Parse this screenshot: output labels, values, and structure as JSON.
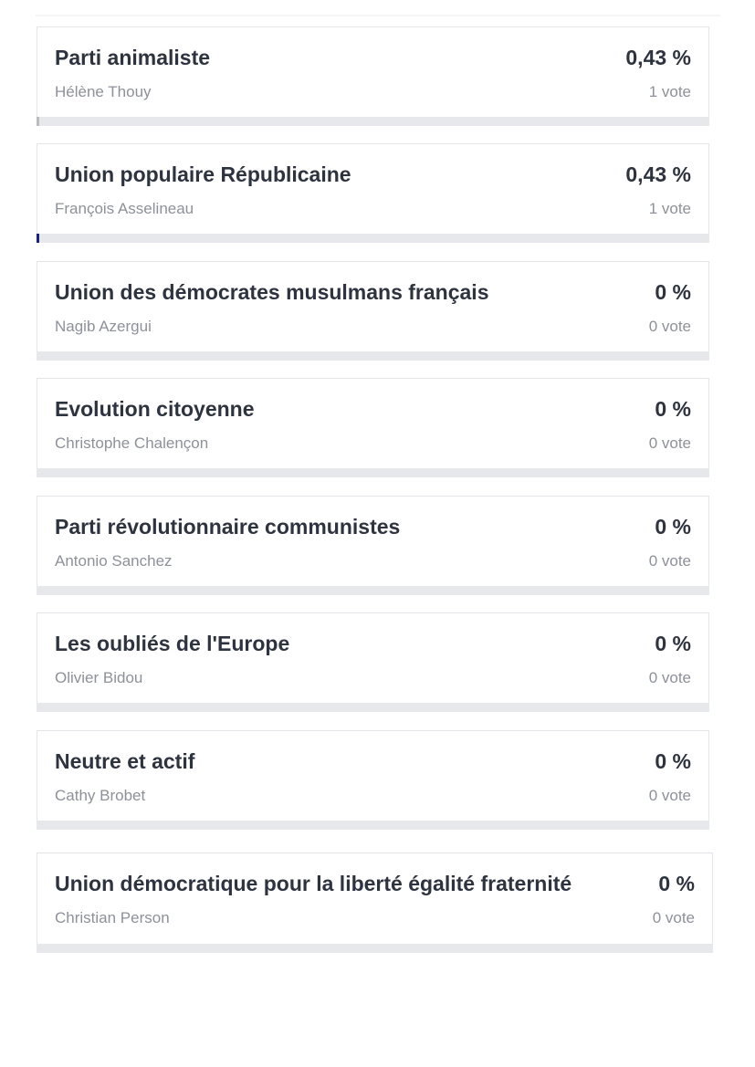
{
  "colors": {
    "bar_track": "#e6e8ec",
    "bar_fill_default": "#b9bcc3",
    "bar_fill_accent": "#1a237e"
  },
  "results": [
    {
      "party": "Parti animaliste",
      "candidate": "Hélène Thouy",
      "percent": "0,43 %",
      "votes": "1 vote",
      "share": 0.0043,
      "bar_color": "#b9bcc3"
    },
    {
      "party": "Union populaire Républicaine",
      "candidate": "François Asselineau",
      "percent": "0,43 %",
      "votes": "1 vote",
      "share": 0.0043,
      "bar_color": "#1a237e"
    },
    {
      "party": "Union des démocrates musulmans français",
      "candidate": "Nagib Azergui",
      "percent": "0 %",
      "votes": "0 vote",
      "share": 0,
      "bar_color": "#b9bcc3"
    },
    {
      "party": "Evolution citoyenne",
      "candidate": "Christophe Chalençon",
      "percent": "0 %",
      "votes": "0 vote",
      "share": 0,
      "bar_color": "#b9bcc3"
    },
    {
      "party": "Parti révolutionnaire communistes",
      "candidate": "Antonio Sanchez",
      "percent": "0 %",
      "votes": "0 vote",
      "share": 0,
      "bar_color": "#b9bcc3"
    },
    {
      "party": "Les oubliés de l'Europe",
      "candidate": "Olivier Bidou",
      "percent": "0 %",
      "votes": "0 vote",
      "share": 0,
      "bar_color": "#b9bcc3"
    },
    {
      "party": "Neutre et actif",
      "candidate": "Cathy Brobet",
      "percent": "0 %",
      "votes": "0 vote",
      "share": 0,
      "bar_color": "#b9bcc3"
    },
    {
      "party": "Union démocratique pour la liberté égalité fraternité",
      "candidate": "Christian Person",
      "percent": "0 %",
      "votes": "0 vote",
      "share": 0,
      "bar_color": "#b9bcc3"
    }
  ]
}
